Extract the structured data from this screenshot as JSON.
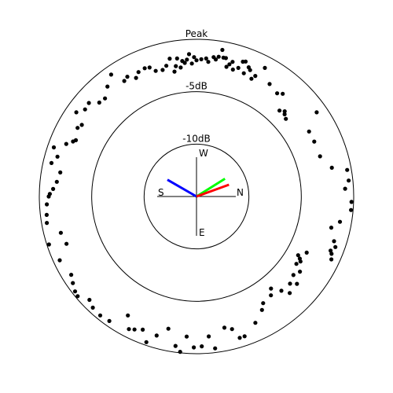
{
  "chart_data": {
    "type": "scatter",
    "projection": "polar",
    "ring_labels": [
      "Peak",
      "-5dB",
      "-10dB"
    ],
    "ring_levels_db": [
      0,
      -5,
      -10
    ],
    "axis_labels": {
      "top": "W",
      "right": "N",
      "bottom": "E",
      "left": "S"
    },
    "db_range": [
      -15,
      0
    ],
    "point_color": "#000000",
    "vectors": [
      {
        "name": "blue",
        "color": "#0000ff",
        "angle_deg": 300,
        "magnitude_db": -11.8
      },
      {
        "name": "green",
        "color": "#00ff00",
        "angle_deg": 58,
        "magnitude_db": -11.8
      },
      {
        "name": "red",
        "color": "#ff0000",
        "angle_deg": 70,
        "magnitude_db": -11.7
      }
    ],
    "points": [
      [
        0,
        -2
      ],
      [
        2,
        -1.9
      ],
      [
        4,
        -1.8
      ],
      [
        5,
        -2.1
      ],
      [
        7,
        -1.6
      ],
      [
        8,
        -1.8
      ],
      [
        9,
        -1.5
      ],
      [
        10,
        -0.8
      ],
      [
        11,
        -1.5
      ],
      [
        12,
        -1.5
      ],
      [
        13,
        -2.3
      ],
      [
        14,
        -2
      ],
      [
        15,
        -1.7
      ],
      [
        16,
        -2.4
      ],
      [
        18,
        -2.1
      ],
      [
        19,
        -1.4
      ],
      [
        20,
        -1.3
      ],
      [
        21,
        -2.4
      ],
      [
        22,
        -1.7
      ],
      [
        23,
        -1.9
      ],
      [
        25,
        -2.6
      ],
      [
        26,
        -2.2
      ],
      [
        28,
        -1.1
      ],
      [
        33,
        -2.2
      ],
      [
        38,
        -2.5
      ],
      [
        40,
        -2.2
      ],
      [
        44,
        -3.6
      ],
      [
        46,
        -3.3
      ],
      [
        47,
        -3.5
      ],
      [
        49,
        -3.7
      ],
      [
        55,
        -1
      ],
      [
        60,
        -2.6
      ],
      [
        65,
        -2.6
      ],
      [
        72,
        -2.6
      ],
      [
        78,
        -1.8
      ],
      [
        80,
        -0.4
      ],
      [
        84,
        -0.4
      ],
      [
        87,
        -0.8
      ],
      [
        92,
        -0.2
      ],
      [
        95,
        -0.2
      ],
      [
        100,
        -1.1
      ],
      [
        103,
        -1.8
      ],
      [
        108,
        -1.2
      ],
      [
        110,
        -0.9
      ],
      [
        112,
        -1.2
      ],
      [
        113,
        -1
      ],
      [
        115,
        -0.8
      ],
      [
        117,
        -3.2
      ],
      [
        120,
        -3.8
      ],
      [
        121,
        -3.5
      ],
      [
        122,
        -3.3
      ],
      [
        124,
        -3.5
      ],
      [
        126,
        -2.8
      ],
      [
        129,
        -3.1
      ],
      [
        131,
        -2.3
      ],
      [
        133,
        -2.8
      ],
      [
        136,
        -2.2
      ],
      [
        138,
        -2.9
      ],
      [
        141,
        -3.7
      ],
      [
        143,
        -3.2
      ],
      [
        148,
        -3
      ],
      [
        150,
        -2.5
      ],
      [
        155,
        -1.7
      ],
      [
        161,
        -0.9
      ],
      [
        163,
        -0.9
      ],
      [
        165,
        -1.9
      ],
      [
        168,
        -2.2
      ],
      [
        173,
        -0.4
      ],
      [
        175,
        -1.6
      ],
      [
        178,
        -0.7
      ],
      [
        181,
        -0.6
      ],
      [
        184,
        -1.6
      ],
      [
        186,
        -0.1
      ],
      [
        188,
        -0.6
      ],
      [
        192,
        -2.1
      ],
      [
        196,
        -1.2
      ],
      [
        199,
        -0.3
      ],
      [
        202,
        -1.3
      ],
      [
        205,
        -1
      ],
      [
        207,
        -0.8
      ],
      [
        210,
        -1.9
      ],
      [
        215,
        -0.5
      ],
      [
        219,
        -0.4
      ],
      [
        223,
        -0.5
      ],
      [
        226,
        -0.8
      ],
      [
        230,
        -0.2
      ],
      [
        232,
        -0.3
      ],
      [
        235,
        -0.6
      ],
      [
        238,
        -0.9
      ],
      [
        245,
        -0.6
      ],
      [
        250,
        -1.8
      ],
      [
        252,
        -0.2
      ],
      [
        255,
        -1.6
      ],
      [
        260,
        -0.5
      ],
      [
        263,
        -0.6
      ],
      [
        267,
        -0.7
      ],
      [
        270,
        -0.9
      ],
      [
        271,
        -1
      ],
      [
        273,
        -1.3
      ],
      [
        276,
        -1.6
      ],
      [
        280,
        -1.8
      ],
      [
        283,
        -0.8
      ],
      [
        286,
        -1.2
      ],
      [
        289,
        -0.6
      ],
      [
        292,
        -1.6
      ],
      [
        294,
        -2.1
      ],
      [
        295,
        -2.3
      ],
      [
        300,
        -1.9
      ],
      [
        302,
        -2.1
      ],
      [
        305,
        -1
      ],
      [
        308,
        -1.5
      ],
      [
        311,
        -1.4
      ],
      [
        314,
        -2.1
      ],
      [
        317,
        -2.2
      ],
      [
        321,
        -1.5
      ],
      [
        325,
        -0.8
      ],
      [
        328,
        -2
      ],
      [
        330,
        -1.8
      ],
      [
        333,
        -2.3
      ],
      [
        335,
        -1.9
      ],
      [
        338,
        -1.8
      ],
      [
        340,
        -1.9
      ],
      [
        342,
        -2.4
      ],
      [
        345,
        -2.5
      ],
      [
        347,
        -2.2
      ],
      [
        349,
        -1.6
      ],
      [
        350,
        -2.9
      ],
      [
        351,
        -2.4
      ],
      [
        352,
        -1.7
      ],
      [
        353,
        -2.6
      ],
      [
        354,
        -2
      ],
      [
        355,
        -2.2
      ],
      [
        356,
        -1.9
      ],
      [
        357,
        -1.4
      ],
      [
        358,
        -2.3
      ],
      [
        359,
        -1.7
      ]
    ]
  }
}
